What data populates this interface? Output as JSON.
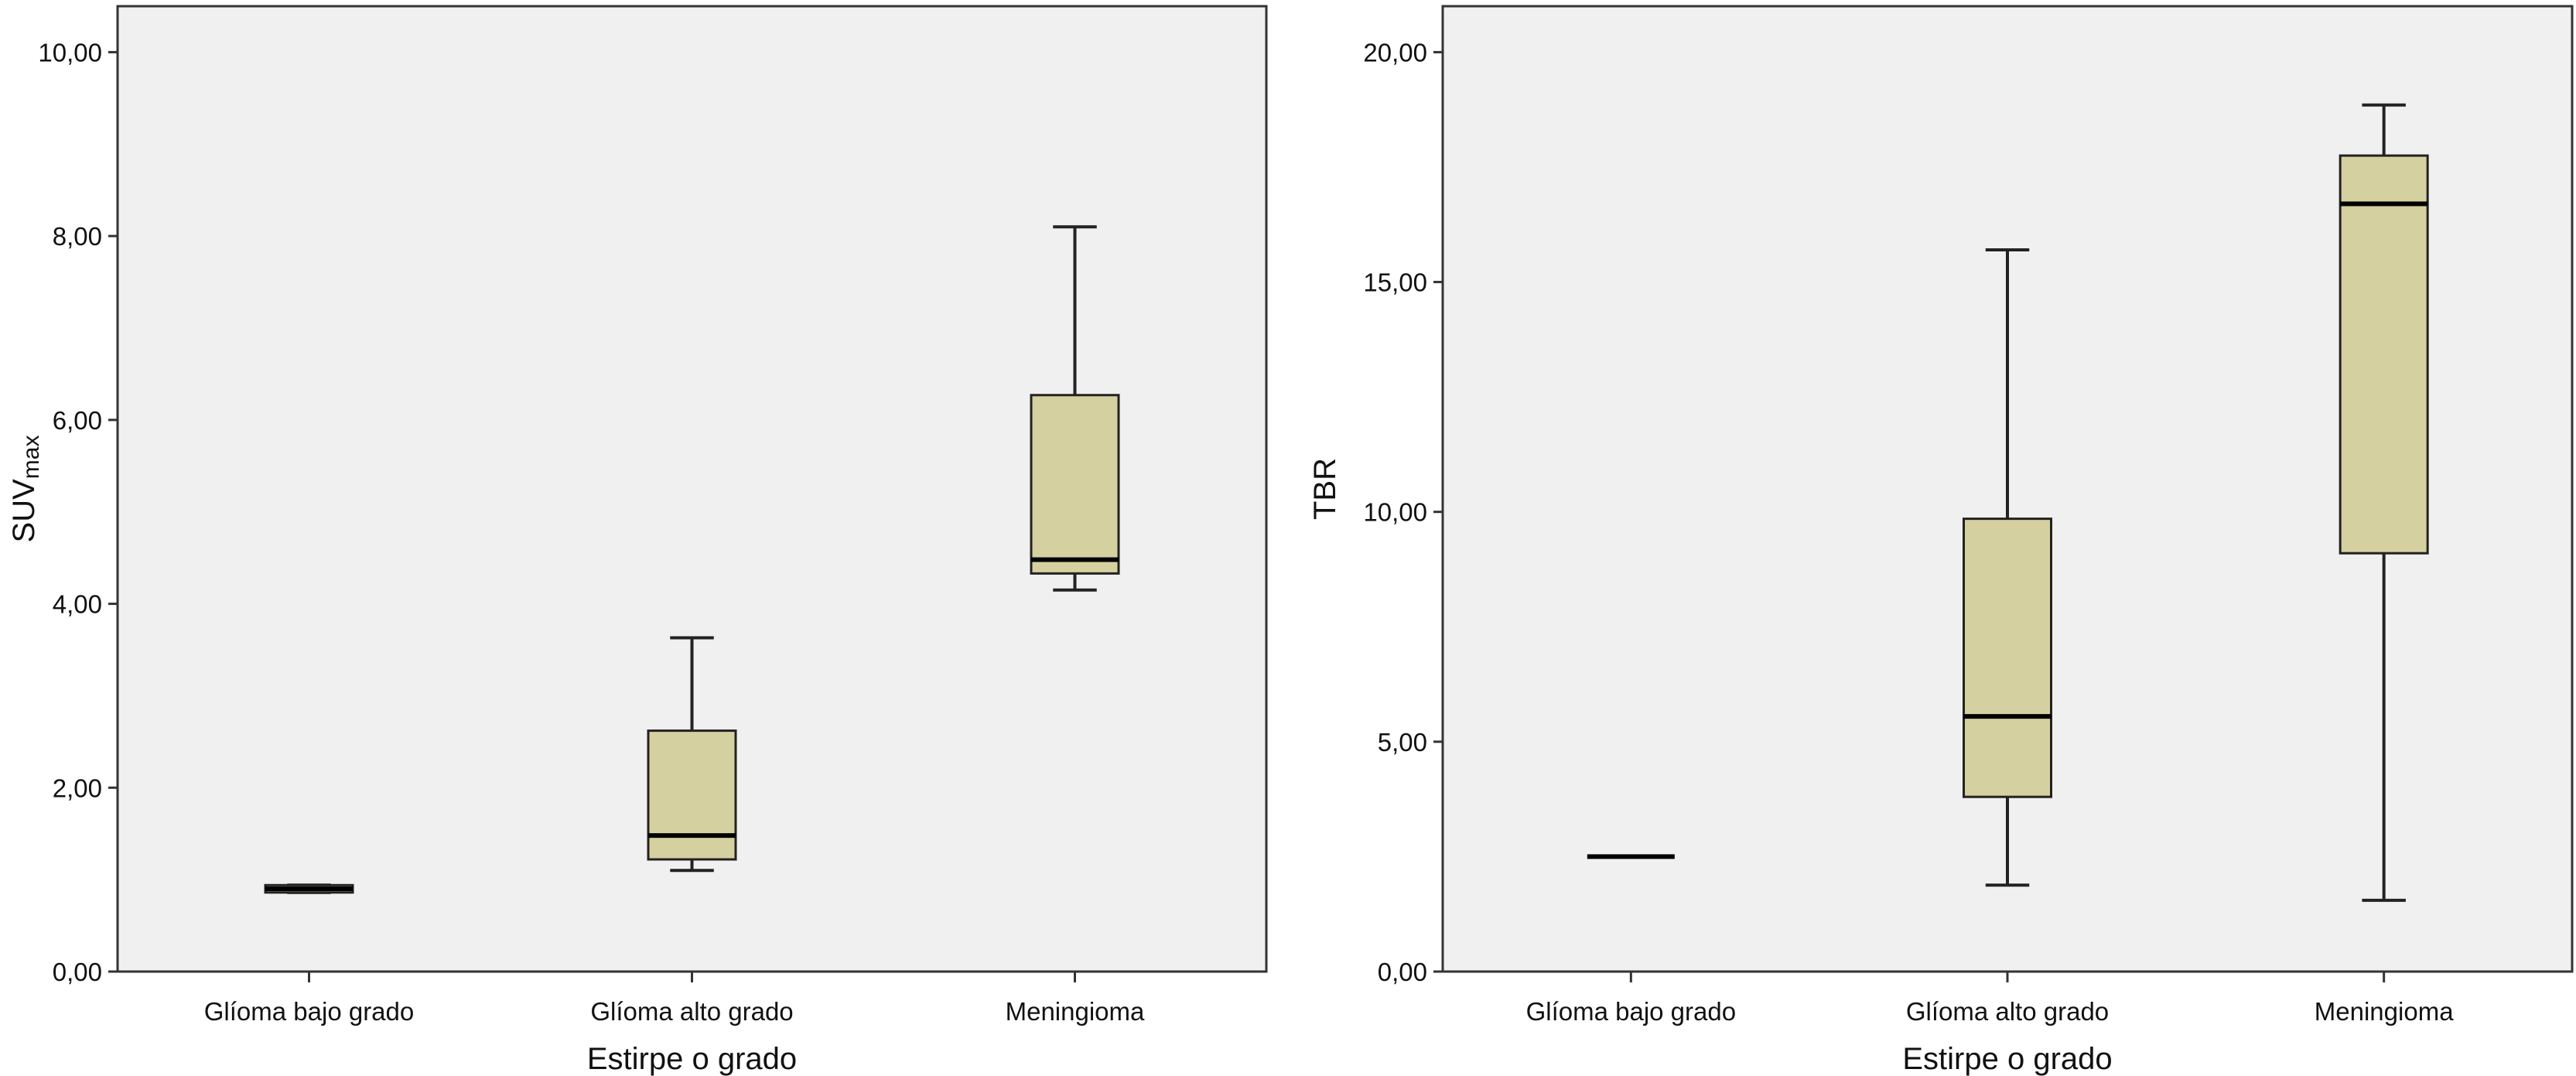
{
  "colors": {
    "plot_bg": "#f0f0f0",
    "box_fill": "#d5d09f",
    "stroke": "#222222"
  },
  "chart_data": [
    {
      "type": "box",
      "xlabel": "Estirpe o grado",
      "ylabel": "SUV",
      "ylabel_sub": "max",
      "ylim": [
        0,
        10.5
      ],
      "yticks": [
        "0,00",
        "2,00",
        "4,00",
        "6,00",
        "8,00",
        "10,00"
      ],
      "ytick_values": [
        0,
        2,
        4,
        6,
        8,
        10
      ],
      "categories": [
        "Glíoma bajo grado",
        "Glíoma alto grado",
        "Meningioma"
      ],
      "boxes": [
        {
          "category": "Glíoma bajo grado",
          "min": 0.86,
          "q1": 0.86,
          "median": 0.9,
          "q3": 0.94,
          "max": 0.94
        },
        {
          "category": "Glíoma alto grado",
          "min": 1.1,
          "q1": 1.22,
          "median": 1.48,
          "q3": 2.62,
          "max": 3.63
        },
        {
          "category": "Meningioma",
          "min": 4.15,
          "q1": 4.33,
          "median": 4.48,
          "q3": 6.27,
          "max": 8.1
        }
      ],
      "grid": false
    },
    {
      "type": "box",
      "xlabel": "Estirpe o grado",
      "ylabel": "TBR",
      "ylim": [
        0,
        21
      ],
      "yticks": [
        "0,00",
        "5,00",
        "10,00",
        "15,00",
        "20,00"
      ],
      "ytick_values": [
        0,
        5,
        10,
        15,
        20
      ],
      "categories": [
        "Glíoma bajo grado",
        "Glíoma alto grado",
        "Meningioma"
      ],
      "boxes": [
        {
          "category": "Glíoma bajo grado",
          "min": 2.5,
          "q1": 2.5,
          "median": 2.5,
          "q3": 2.5,
          "max": 2.5
        },
        {
          "category": "Glíoma alto grado",
          "min": 1.88,
          "q1": 3.8,
          "median": 5.55,
          "q3": 9.85,
          "max": 15.7
        },
        {
          "category": "Meningioma",
          "min": 1.55,
          "q1": 9.1,
          "median": 16.7,
          "q3": 17.75,
          "max": 18.85
        }
      ],
      "grid": false
    }
  ]
}
